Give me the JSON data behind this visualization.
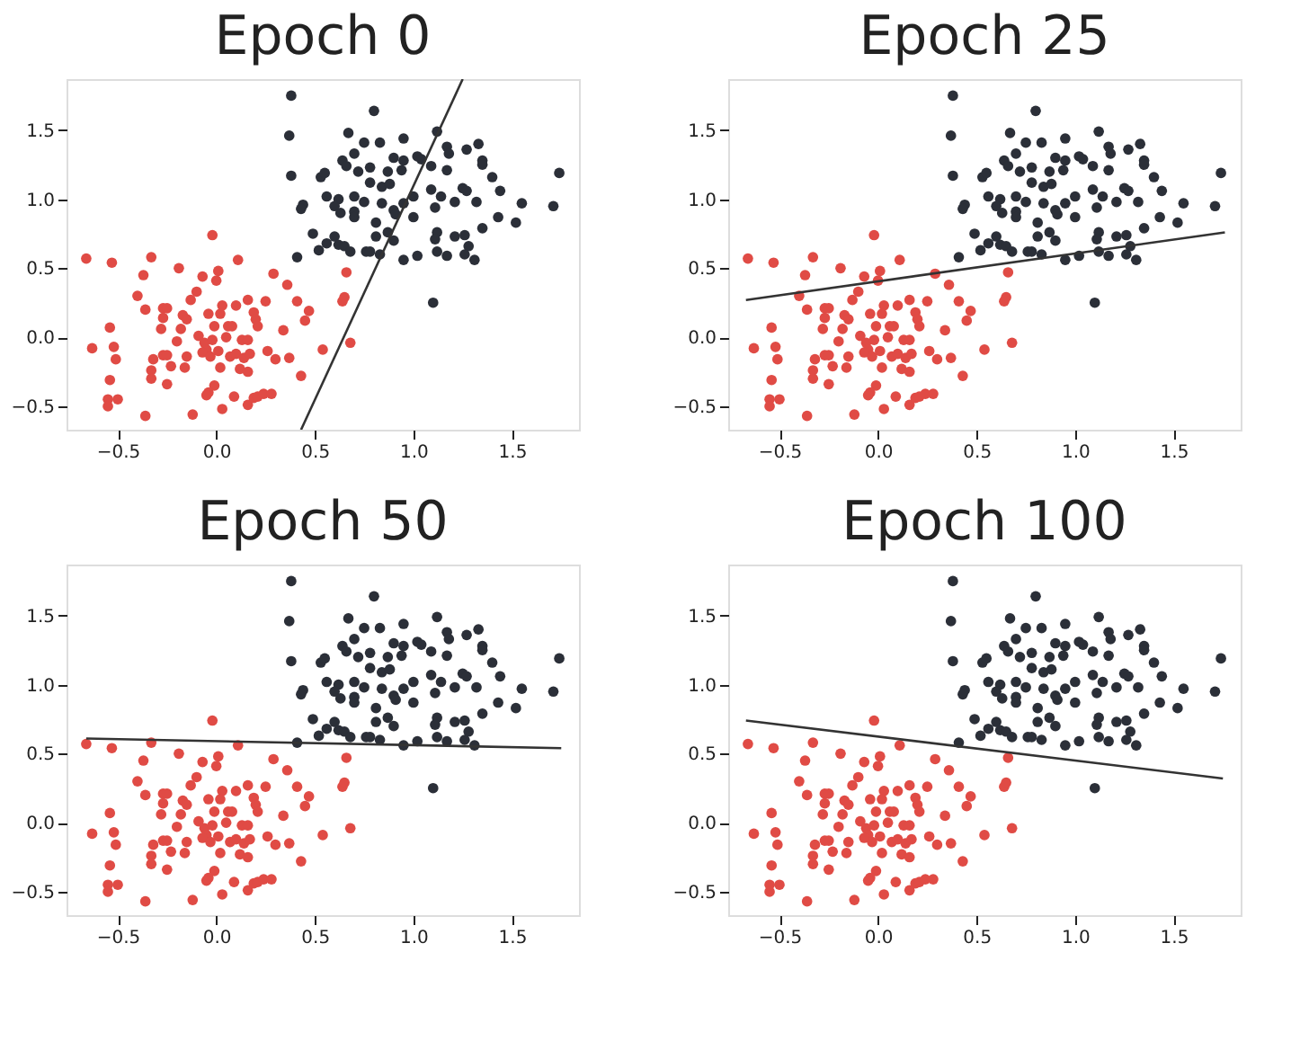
{
  "chart_data": [
    {
      "type": "scatter",
      "title": "Epoch 0",
      "xlim": [
        -0.76,
        1.84
      ],
      "ylim": [
        -0.67,
        1.87
      ],
      "xticks": [
        {
          "value": -0.5,
          "label": "−0.5"
        },
        {
          "value": 0,
          "label": "0.0"
        },
        {
          "value": 0.5,
          "label": "0.5"
        },
        {
          "value": 1,
          "label": "1.0"
        },
        {
          "value": 1.5,
          "label": "1.5"
        }
      ],
      "yticks": [
        {
          "value": -0.5,
          "label": "−0.5"
        },
        {
          "value": 0,
          "label": "0.0"
        },
        {
          "value": 0.5,
          "label": "0.5"
        },
        {
          "value": 1,
          "label": "1.0"
        },
        {
          "value": 1.5,
          "label": "1.5"
        }
      ],
      "series": [
        {
          "marker": "circle",
          "color": "#e04b45",
          "x": [
            -0.66,
            -0.53,
            -0.33,
            -0.37,
            -0.19,
            -0.02,
            0.01,
            0.0,
            -0.07,
            0.11,
            0.29,
            0.36,
            -0.4,
            -0.36,
            -0.27,
            -0.25,
            -0.13,
            -0.1,
            -0.17,
            -0.15,
            -0.04,
            0.03,
            0.02,
            0.1,
            0.16,
            0.25,
            0.19,
            0.2,
            0.41,
            0.47,
            0.45,
            0.64,
            0.65,
            0.66,
            -0.27,
            -0.28,
            -0.18,
            -0.01,
            0.06,
            0.08,
            0.21,
            0.34,
            -0.54,
            -0.63,
            -0.52,
            -0.51,
            -0.2,
            -0.09,
            -0.06,
            -0.05,
            -0.02,
            0.05,
            0.13,
            0.16,
            -0.07,
            -0.03,
            0.01,
            0.07,
            0.1,
            0.14,
            0.17,
            0.26,
            0.3,
            0.37,
            0.54,
            0.68,
            -0.32,
            -0.27,
            -0.25,
            -0.15,
            -0.23,
            -0.16,
            0.02,
            0.12,
            0.16,
            -0.33,
            -0.33,
            -0.54,
            -0.25,
            0.43,
            -0.01,
            -0.04,
            -0.05,
            -0.55,
            -0.5,
            -0.55,
            -0.36,
            -0.12,
            0.03,
            0.09,
            0.16,
            0.19,
            0.21,
            0.24,
            0.28
          ],
          "values": [
            0.57,
            0.54,
            0.58,
            0.45,
            0.5,
            0.74,
            0.48,
            0.41,
            0.44,
            0.56,
            0.46,
            0.38,
            0.3,
            0.2,
            0.21,
            0.21,
            0.27,
            0.33,
            0.16,
            0.13,
            0.17,
            0.23,
            0.17,
            0.23,
            0.27,
            0.26,
            0.18,
            0.13,
            0.26,
            0.19,
            0.12,
            0.26,
            0.29,
            0.47,
            0.14,
            0.06,
            0.06,
            0.08,
            0.08,
            0.08,
            0.08,
            0.05,
            0.07,
            -0.08,
            -0.07,
            -0.16,
            -0.03,
            0.01,
            -0.04,
            -0.09,
            -0.02,
            0.0,
            -0.02,
            -0.02,
            -0.11,
            -0.14,
            -0.1,
            -0.14,
            -0.12,
            -0.15,
            -0.12,
            -0.1,
            -0.16,
            -0.15,
            -0.09,
            -0.04,
            -0.16,
            -0.13,
            -0.13,
            -0.14,
            -0.21,
            -0.22,
            -0.22,
            -0.23,
            -0.25,
            -0.24,
            -0.3,
            -0.31,
            -0.34,
            -0.28,
            -0.35,
            -0.4,
            -0.42,
            -0.45,
            -0.45,
            -0.5,
            -0.57,
            -0.56,
            -0.52,
            -0.43,
            -0.49,
            -0.44,
            -0.43,
            -0.41,
            -0.41
          ]
        },
        {
          "marker": "circle",
          "color": "#2b2f38",
          "x": [
            0.38,
            0.8,
            0.37,
            0.67,
            0.75,
            0.83,
            0.95,
            1.12,
            1.17,
            1.33,
            1.18,
            1.27,
            0.38,
            0.53,
            0.55,
            0.64,
            0.66,
            0.7,
            0.72,
            0.78,
            0.87,
            0.9,
            0.95,
            1.02,
            1.04,
            1.09,
            1.17,
            1.35,
            1.35,
            1.4,
            1.74,
            0.78,
            0.84,
            0.88,
            0.94,
            0.56,
            0.62,
            0.7,
            0.75,
            1.09,
            1.14,
            1.25,
            1.27,
            1.44,
            0.44,
            0.43,
            0.6,
            0.63,
            0.7,
            0.84,
            0.9,
            0.95,
            1.0,
            1.11,
            1.21,
            1.32,
            1.55,
            1.71,
            0.7,
            0.81,
            0.91,
            1.0,
            1.43,
            1.52,
            0.49,
            0.6,
            0.81,
            0.87,
            0.9,
            1.12,
            1.11,
            1.21,
            1.26,
            1.35,
            1.28,
            0.41,
            0.52,
            0.56,
            0.62,
            0.65,
            0.68,
            0.76,
            0.78,
            0.83,
            0.95,
            1.02,
            1.12,
            1.17,
            1.26,
            1.31,
            1.1
          ],
          "values": [
            1.75,
            1.64,
            1.46,
            1.48,
            1.41,
            1.41,
            1.44,
            1.49,
            1.38,
            1.4,
            1.33,
            1.36,
            1.17,
            1.16,
            1.19,
            1.28,
            1.24,
            1.33,
            1.2,
            1.23,
            1.2,
            1.3,
            1.28,
            1.31,
            1.29,
            1.24,
            1.21,
            1.28,
            1.25,
            1.16,
            1.19,
            1.12,
            1.09,
            1.11,
            1.21,
            1.02,
            1.0,
            1.02,
            0.98,
            1.07,
            1.02,
            1.08,
            1.06,
            1.06,
            0.96,
            0.93,
            0.95,
            0.9,
            0.91,
            0.97,
            0.92,
            0.97,
            1.02,
            0.94,
            0.98,
            0.98,
            0.97,
            0.95,
            0.87,
            0.83,
            0.89,
            0.87,
            0.87,
            0.83,
            0.75,
            0.73,
            0.73,
            0.76,
            0.7,
            0.76,
            0.71,
            0.73,
            0.74,
            0.79,
            0.66,
            0.58,
            0.63,
            0.68,
            0.67,
            0.66,
            0.62,
            0.62,
            0.62,
            0.6,
            0.56,
            0.59,
            0.62,
            0.59,
            0.6,
            0.56,
            0.25
          ]
        },
        {
          "type": "line",
          "marker": "none",
          "line_style": "solid",
          "color": "#333333",
          "x": [
            0.43,
            1.25
          ],
          "values": [
            -0.67,
            1.87
          ]
        }
      ]
    },
    {
      "type": "scatter",
      "title": "Epoch 25",
      "xlim": [
        -0.76,
        1.84
      ],
      "ylim": [
        -0.67,
        1.87
      ],
      "xticks": [
        {
          "value": -0.5,
          "label": "−0.5"
        },
        {
          "value": 0,
          "label": "0.0"
        },
        {
          "value": 0.5,
          "label": "0.5"
        },
        {
          "value": 1,
          "label": "1.0"
        },
        {
          "value": 1.5,
          "label": "1.5"
        }
      ],
      "yticks": [
        {
          "value": -0.5,
          "label": "−0.5"
        },
        {
          "value": 0,
          "label": "0.0"
        },
        {
          "value": 0.5,
          "label": "0.5"
        },
        {
          "value": 1,
          "label": "1.0"
        },
        {
          "value": 1.5,
          "label": "1.5"
        }
      ],
      "series": [
        {
          "marker": "circle",
          "color": "#e04b45",
          "x": [
            -0.66,
            -0.53,
            -0.33,
            -0.37,
            -0.19,
            -0.02,
            0.01,
            0.0,
            -0.07,
            0.11,
            0.29,
            0.36,
            -0.4,
            -0.36,
            -0.27,
            -0.25,
            -0.13,
            -0.1,
            -0.17,
            -0.15,
            -0.04,
            0.03,
            0.02,
            0.1,
            0.16,
            0.25,
            0.19,
            0.2,
            0.41,
            0.47,
            0.45,
            0.64,
            0.65,
            0.66,
            -0.27,
            -0.28,
            -0.18,
            -0.01,
            0.06,
            0.08,
            0.21,
            0.34,
            -0.54,
            -0.63,
            -0.52,
            -0.51,
            -0.2,
            -0.09,
            -0.06,
            -0.05,
            -0.02,
            0.05,
            0.13,
            0.16,
            -0.07,
            -0.03,
            0.01,
            0.07,
            0.1,
            0.14,
            0.17,
            0.26,
            0.3,
            0.37,
            0.54,
            0.68,
            -0.32,
            -0.27,
            -0.25,
            -0.15,
            -0.23,
            -0.16,
            0.02,
            0.12,
            0.16,
            -0.33,
            -0.33,
            -0.54,
            -0.25,
            0.43,
            -0.01,
            -0.04,
            -0.05,
            -0.55,
            -0.5,
            -0.55,
            -0.36,
            -0.12,
            0.03,
            0.09,
            0.16,
            0.19,
            0.21,
            0.24,
            0.28
          ],
          "values": [
            0.57,
            0.54,
            0.58,
            0.45,
            0.5,
            0.74,
            0.48,
            0.41,
            0.44,
            0.56,
            0.46,
            0.38,
            0.3,
            0.2,
            0.21,
            0.21,
            0.27,
            0.33,
            0.16,
            0.13,
            0.17,
            0.23,
            0.17,
            0.23,
            0.27,
            0.26,
            0.18,
            0.13,
            0.26,
            0.19,
            0.12,
            0.26,
            0.29,
            0.47,
            0.14,
            0.06,
            0.06,
            0.08,
            0.08,
            0.08,
            0.08,
            0.05,
            0.07,
            -0.08,
            -0.07,
            -0.16,
            -0.03,
            0.01,
            -0.04,
            -0.09,
            -0.02,
            0.0,
            -0.02,
            -0.02,
            -0.11,
            -0.14,
            -0.1,
            -0.14,
            -0.12,
            -0.15,
            -0.12,
            -0.1,
            -0.16,
            -0.15,
            -0.09,
            -0.04,
            -0.16,
            -0.13,
            -0.13,
            -0.14,
            -0.21,
            -0.22,
            -0.22,
            -0.23,
            -0.25,
            -0.24,
            -0.3,
            -0.31,
            -0.34,
            -0.28,
            -0.35,
            -0.4,
            -0.42,
            -0.45,
            -0.45,
            -0.5,
            -0.57,
            -0.56,
            -0.52,
            -0.43,
            -0.49,
            -0.44,
            -0.43,
            -0.41,
            -0.41
          ]
        },
        {
          "marker": "circle",
          "color": "#2b2f38",
          "x": [
            0.38,
            0.8,
            0.37,
            0.67,
            0.75,
            0.83,
            0.95,
            1.12,
            1.17,
            1.33,
            1.18,
            1.27,
            0.38,
            0.53,
            0.55,
            0.64,
            0.66,
            0.7,
            0.72,
            0.78,
            0.87,
            0.9,
            0.95,
            1.02,
            1.04,
            1.09,
            1.17,
            1.35,
            1.35,
            1.4,
            1.74,
            0.78,
            0.84,
            0.88,
            0.94,
            0.56,
            0.62,
            0.7,
            0.75,
            1.09,
            1.14,
            1.25,
            1.27,
            1.44,
            0.44,
            0.43,
            0.6,
            0.63,
            0.7,
            0.84,
            0.9,
            0.95,
            1.0,
            1.11,
            1.21,
            1.32,
            1.55,
            1.71,
            0.7,
            0.81,
            0.91,
            1.0,
            1.43,
            1.52,
            0.49,
            0.6,
            0.81,
            0.87,
            0.9,
            1.12,
            1.11,
            1.21,
            1.26,
            1.35,
            1.28,
            0.41,
            0.52,
            0.56,
            0.62,
            0.65,
            0.68,
            0.76,
            0.78,
            0.83,
            0.95,
            1.02,
            1.12,
            1.17,
            1.26,
            1.31,
            1.1
          ],
          "values": [
            1.75,
            1.64,
            1.46,
            1.48,
            1.41,
            1.41,
            1.44,
            1.49,
            1.38,
            1.4,
            1.33,
            1.36,
            1.17,
            1.16,
            1.19,
            1.28,
            1.24,
            1.33,
            1.2,
            1.23,
            1.2,
            1.3,
            1.28,
            1.31,
            1.29,
            1.24,
            1.21,
            1.28,
            1.25,
            1.16,
            1.19,
            1.12,
            1.09,
            1.11,
            1.21,
            1.02,
            1.0,
            1.02,
            0.98,
            1.07,
            1.02,
            1.08,
            1.06,
            1.06,
            0.96,
            0.93,
            0.95,
            0.9,
            0.91,
            0.97,
            0.92,
            0.97,
            1.02,
            0.94,
            0.98,
            0.98,
            0.97,
            0.95,
            0.87,
            0.83,
            0.89,
            0.87,
            0.87,
            0.83,
            0.75,
            0.73,
            0.73,
            0.76,
            0.7,
            0.76,
            0.71,
            0.73,
            0.74,
            0.79,
            0.66,
            0.58,
            0.63,
            0.68,
            0.67,
            0.66,
            0.62,
            0.62,
            0.62,
            0.6,
            0.56,
            0.59,
            0.62,
            0.59,
            0.6,
            0.56,
            0.25
          ]
        },
        {
          "type": "line",
          "marker": "none",
          "line_style": "solid",
          "color": "#333333",
          "x": [
            -0.67,
            1.76
          ],
          "values": [
            0.27,
            0.76
          ]
        }
      ]
    },
    {
      "type": "scatter",
      "title": "Epoch 50",
      "xlim": [
        -0.76,
        1.84
      ],
      "ylim": [
        -0.67,
        1.87
      ],
      "xticks": [
        {
          "value": -0.5,
          "label": "−0.5"
        },
        {
          "value": 0,
          "label": "0.0"
        },
        {
          "value": 0.5,
          "label": "0.5"
        },
        {
          "value": 1,
          "label": "1.0"
        },
        {
          "value": 1.5,
          "label": "1.5"
        }
      ],
      "yticks": [
        {
          "value": -0.5,
          "label": "−0.5"
        },
        {
          "value": 0,
          "label": "0.0"
        },
        {
          "value": 0.5,
          "label": "0.5"
        },
        {
          "value": 1,
          "label": "1.0"
        },
        {
          "value": 1.5,
          "label": "1.5"
        }
      ],
      "series": [
        {
          "marker": "circle",
          "color": "#e04b45",
          "x": [
            -0.66,
            -0.53,
            -0.33,
            -0.37,
            -0.19,
            -0.02,
            0.01,
            0.0,
            -0.07,
            0.11,
            0.29,
            0.36,
            -0.4,
            -0.36,
            -0.27,
            -0.25,
            -0.13,
            -0.1,
            -0.17,
            -0.15,
            -0.04,
            0.03,
            0.02,
            0.1,
            0.16,
            0.25,
            0.19,
            0.2,
            0.41,
            0.47,
            0.45,
            0.64,
            0.65,
            0.66,
            -0.27,
            -0.28,
            -0.18,
            -0.01,
            0.06,
            0.08,
            0.21,
            0.34,
            -0.54,
            -0.63,
            -0.52,
            -0.51,
            -0.2,
            -0.09,
            -0.06,
            -0.05,
            -0.02,
            0.05,
            0.13,
            0.16,
            -0.07,
            -0.03,
            0.01,
            0.07,
            0.1,
            0.14,
            0.17,
            0.26,
            0.3,
            0.37,
            0.54,
            0.68,
            -0.32,
            -0.27,
            -0.25,
            -0.15,
            -0.23,
            -0.16,
            0.02,
            0.12,
            0.16,
            -0.33,
            -0.33,
            -0.54,
            -0.25,
            0.43,
            -0.01,
            -0.04,
            -0.05,
            -0.55,
            -0.5,
            -0.55,
            -0.36,
            -0.12,
            0.03,
            0.09,
            0.16,
            0.19,
            0.21,
            0.24,
            0.28
          ],
          "values": [
            0.57,
            0.54,
            0.58,
            0.45,
            0.5,
            0.74,
            0.48,
            0.41,
            0.44,
            0.56,
            0.46,
            0.38,
            0.3,
            0.2,
            0.21,
            0.21,
            0.27,
            0.33,
            0.16,
            0.13,
            0.17,
            0.23,
            0.17,
            0.23,
            0.27,
            0.26,
            0.18,
            0.13,
            0.26,
            0.19,
            0.12,
            0.26,
            0.29,
            0.47,
            0.14,
            0.06,
            0.06,
            0.08,
            0.08,
            0.08,
            0.08,
            0.05,
            0.07,
            -0.08,
            -0.07,
            -0.16,
            -0.03,
            0.01,
            -0.04,
            -0.09,
            -0.02,
            0.0,
            -0.02,
            -0.02,
            -0.11,
            -0.14,
            -0.1,
            -0.14,
            -0.12,
            -0.15,
            -0.12,
            -0.1,
            -0.16,
            -0.15,
            -0.09,
            -0.04,
            -0.16,
            -0.13,
            -0.13,
            -0.14,
            -0.21,
            -0.22,
            -0.22,
            -0.23,
            -0.25,
            -0.24,
            -0.3,
            -0.31,
            -0.34,
            -0.28,
            -0.35,
            -0.4,
            -0.42,
            -0.45,
            -0.45,
            -0.5,
            -0.57,
            -0.56,
            -0.52,
            -0.43,
            -0.49,
            -0.44,
            -0.43,
            -0.41,
            -0.41
          ]
        },
        {
          "marker": "circle",
          "color": "#2b2f38",
          "x": [
            0.38,
            0.8,
            0.37,
            0.67,
            0.75,
            0.83,
            0.95,
            1.12,
            1.17,
            1.33,
            1.18,
            1.27,
            0.38,
            0.53,
            0.55,
            0.64,
            0.66,
            0.7,
            0.72,
            0.78,
            0.87,
            0.9,
            0.95,
            1.02,
            1.04,
            1.09,
            1.17,
            1.35,
            1.35,
            1.4,
            1.74,
            0.78,
            0.84,
            0.88,
            0.94,
            0.56,
            0.62,
            0.7,
            0.75,
            1.09,
            1.14,
            1.25,
            1.27,
            1.44,
            0.44,
            0.43,
            0.6,
            0.63,
            0.7,
            0.84,
            0.9,
            0.95,
            1.0,
            1.11,
            1.21,
            1.32,
            1.55,
            1.71,
            0.7,
            0.81,
            0.91,
            1.0,
            1.43,
            1.52,
            0.49,
            0.6,
            0.81,
            0.87,
            0.9,
            1.12,
            1.11,
            1.21,
            1.26,
            1.35,
            1.28,
            0.41,
            0.52,
            0.56,
            0.62,
            0.65,
            0.68,
            0.76,
            0.78,
            0.83,
            0.95,
            1.02,
            1.12,
            1.17,
            1.26,
            1.31,
            1.1
          ],
          "values": [
            1.75,
            1.64,
            1.46,
            1.48,
            1.41,
            1.41,
            1.44,
            1.49,
            1.38,
            1.4,
            1.33,
            1.36,
            1.17,
            1.16,
            1.19,
            1.28,
            1.24,
            1.33,
            1.2,
            1.23,
            1.2,
            1.3,
            1.28,
            1.31,
            1.29,
            1.24,
            1.21,
            1.28,
            1.25,
            1.16,
            1.19,
            1.12,
            1.09,
            1.11,
            1.21,
            1.02,
            1.0,
            1.02,
            0.98,
            1.07,
            1.02,
            1.08,
            1.06,
            1.06,
            0.96,
            0.93,
            0.95,
            0.9,
            0.91,
            0.97,
            0.92,
            0.97,
            1.02,
            0.94,
            0.98,
            0.98,
            0.97,
            0.95,
            0.87,
            0.83,
            0.89,
            0.87,
            0.87,
            0.83,
            0.75,
            0.73,
            0.73,
            0.76,
            0.7,
            0.76,
            0.71,
            0.73,
            0.74,
            0.79,
            0.66,
            0.58,
            0.63,
            0.68,
            0.67,
            0.66,
            0.62,
            0.62,
            0.62,
            0.6,
            0.56,
            0.59,
            0.62,
            0.59,
            0.6,
            0.56,
            0.25
          ]
        },
        {
          "type": "line",
          "marker": "none",
          "line_style": "solid",
          "color": "#333333",
          "x": [
            -0.66,
            1.75
          ],
          "values": [
            0.61,
            0.54
          ]
        }
      ]
    },
    {
      "type": "scatter",
      "title": "Epoch 100",
      "xlim": [
        -0.76,
        1.84
      ],
      "ylim": [
        -0.67,
        1.87
      ],
      "xticks": [
        {
          "value": -0.5,
          "label": "−0.5"
        },
        {
          "value": 0,
          "label": "0.0"
        },
        {
          "value": 0.5,
          "label": "0.5"
        },
        {
          "value": 1,
          "label": "1.0"
        },
        {
          "value": 1.5,
          "label": "1.5"
        }
      ],
      "yticks": [
        {
          "value": -0.5,
          "label": "−0.5"
        },
        {
          "value": 0,
          "label": "0.0"
        },
        {
          "value": 0.5,
          "label": "0.5"
        },
        {
          "value": 1,
          "label": "1.0"
        },
        {
          "value": 1.5,
          "label": "1.5"
        }
      ],
      "series": [
        {
          "marker": "circle",
          "color": "#e04b45",
          "x": [
            -0.66,
            -0.53,
            -0.33,
            -0.37,
            -0.19,
            -0.02,
            0.01,
            0.0,
            -0.07,
            0.11,
            0.29,
            0.36,
            -0.4,
            -0.36,
            -0.27,
            -0.25,
            -0.13,
            -0.1,
            -0.17,
            -0.15,
            -0.04,
            0.03,
            0.02,
            0.1,
            0.16,
            0.25,
            0.19,
            0.2,
            0.41,
            0.47,
            0.45,
            0.64,
            0.65,
            0.66,
            -0.27,
            -0.28,
            -0.18,
            -0.01,
            0.06,
            0.08,
            0.21,
            0.34,
            -0.54,
            -0.63,
            -0.52,
            -0.51,
            -0.2,
            -0.09,
            -0.06,
            -0.05,
            -0.02,
            0.05,
            0.13,
            0.16,
            -0.07,
            -0.03,
            0.01,
            0.07,
            0.1,
            0.14,
            0.17,
            0.26,
            0.3,
            0.37,
            0.54,
            0.68,
            -0.32,
            -0.27,
            -0.25,
            -0.15,
            -0.23,
            -0.16,
            0.02,
            0.12,
            0.16,
            -0.33,
            -0.33,
            -0.54,
            -0.25,
            0.43,
            -0.01,
            -0.04,
            -0.05,
            -0.55,
            -0.5,
            -0.55,
            -0.36,
            -0.12,
            0.03,
            0.09,
            0.16,
            0.19,
            0.21,
            0.24,
            0.28
          ],
          "values": [
            0.57,
            0.54,
            0.58,
            0.45,
            0.5,
            0.74,
            0.48,
            0.41,
            0.44,
            0.56,
            0.46,
            0.38,
            0.3,
            0.2,
            0.21,
            0.21,
            0.27,
            0.33,
            0.16,
            0.13,
            0.17,
            0.23,
            0.17,
            0.23,
            0.27,
            0.26,
            0.18,
            0.13,
            0.26,
            0.19,
            0.12,
            0.26,
            0.29,
            0.47,
            0.14,
            0.06,
            0.06,
            0.08,
            0.08,
            0.08,
            0.08,
            0.05,
            0.07,
            -0.08,
            -0.07,
            -0.16,
            -0.03,
            0.01,
            -0.04,
            -0.09,
            -0.02,
            0.0,
            -0.02,
            -0.02,
            -0.11,
            -0.14,
            -0.1,
            -0.14,
            -0.12,
            -0.15,
            -0.12,
            -0.1,
            -0.16,
            -0.15,
            -0.09,
            -0.04,
            -0.16,
            -0.13,
            -0.13,
            -0.14,
            -0.21,
            -0.22,
            -0.22,
            -0.23,
            -0.25,
            -0.24,
            -0.3,
            -0.31,
            -0.34,
            -0.28,
            -0.35,
            -0.4,
            -0.42,
            -0.45,
            -0.45,
            -0.5,
            -0.57,
            -0.56,
            -0.52,
            -0.43,
            -0.49,
            -0.44,
            -0.43,
            -0.41,
            -0.41
          ]
        },
        {
          "marker": "circle",
          "color": "#2b2f38",
          "x": [
            0.38,
            0.8,
            0.37,
            0.67,
            0.75,
            0.83,
            0.95,
            1.12,
            1.17,
            1.33,
            1.18,
            1.27,
            0.38,
            0.53,
            0.55,
            0.64,
            0.66,
            0.7,
            0.72,
            0.78,
            0.87,
            0.9,
            0.95,
            1.02,
            1.04,
            1.09,
            1.17,
            1.35,
            1.35,
            1.4,
            1.74,
            0.78,
            0.84,
            0.88,
            0.94,
            0.56,
            0.62,
            0.7,
            0.75,
            1.09,
            1.14,
            1.25,
            1.27,
            1.44,
            0.44,
            0.43,
            0.6,
            0.63,
            0.7,
            0.84,
            0.9,
            0.95,
            1.0,
            1.11,
            1.21,
            1.32,
            1.55,
            1.71,
            0.7,
            0.81,
            0.91,
            1.0,
            1.43,
            1.52,
            0.49,
            0.6,
            0.81,
            0.87,
            0.9,
            1.12,
            1.11,
            1.21,
            1.26,
            1.35,
            1.28,
            0.41,
            0.52,
            0.56,
            0.62,
            0.65,
            0.68,
            0.76,
            0.78,
            0.83,
            0.95,
            1.02,
            1.12,
            1.17,
            1.26,
            1.31,
            1.1
          ],
          "values": [
            1.75,
            1.64,
            1.46,
            1.48,
            1.41,
            1.41,
            1.44,
            1.49,
            1.38,
            1.4,
            1.33,
            1.36,
            1.17,
            1.16,
            1.19,
            1.28,
            1.24,
            1.33,
            1.2,
            1.23,
            1.2,
            1.3,
            1.28,
            1.31,
            1.29,
            1.24,
            1.21,
            1.28,
            1.25,
            1.16,
            1.19,
            1.12,
            1.09,
            1.11,
            1.21,
            1.02,
            1.0,
            1.02,
            0.98,
            1.07,
            1.02,
            1.08,
            1.06,
            1.06,
            0.96,
            0.93,
            0.95,
            0.9,
            0.91,
            0.97,
            0.92,
            0.97,
            1.02,
            0.94,
            0.98,
            0.98,
            0.97,
            0.95,
            0.87,
            0.83,
            0.89,
            0.87,
            0.87,
            0.83,
            0.75,
            0.73,
            0.73,
            0.76,
            0.7,
            0.76,
            0.71,
            0.73,
            0.74,
            0.79,
            0.66,
            0.58,
            0.63,
            0.68,
            0.67,
            0.66,
            0.62,
            0.62,
            0.62,
            0.6,
            0.56,
            0.59,
            0.62,
            0.59,
            0.6,
            0.56,
            0.25
          ]
        },
        {
          "type": "line",
          "marker": "none",
          "line_style": "solid",
          "color": "#333333",
          "x": [
            -0.67,
            1.75
          ],
          "values": [
            0.74,
            0.32
          ]
        }
      ]
    }
  ]
}
